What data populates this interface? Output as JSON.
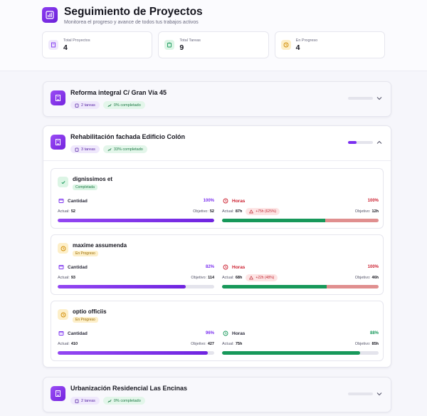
{
  "header": {
    "title": "Seguimiento de Proyectos",
    "subtitle": "Monitorea el progreso y avance de todos tus trabajos activos"
  },
  "stats": [
    {
      "label": "Total Proyectos",
      "value": "4"
    },
    {
      "label": "Total Tareas",
      "value": "9"
    },
    {
      "label": "En Progreso",
      "value": "4"
    }
  ],
  "projects": [
    {
      "name": "Reforma integral C/ Gran Vía 45",
      "tasks_badge": "2 tareas",
      "completion_badge": "0% completado",
      "progress": 0,
      "expanded": false
    },
    {
      "name": "Rehabilitación fachada Edificio Colón",
      "tasks_badge": "3 tareas",
      "completion_badge": "33% completado",
      "progress": 33,
      "expanded": true,
      "tasks": [
        {
          "name": "dignissimos et",
          "status": "Completada",
          "cantidad": {
            "label": "Cantidad",
            "pct": "100%",
            "actual_label": "Actual:",
            "actual": "52",
            "target_label": "Objetivo:",
            "target": "52",
            "fill": 1.0
          },
          "horas": {
            "label": "Horas",
            "pct": "100%",
            "actual_label": "Actual:",
            "actual": "87h",
            "excess": "+75h (625%)",
            "target_label": "Objetivo:",
            "target": "12h",
            "fill": 1.0,
            "over": true
          }
        },
        {
          "name": "maxime assumenda",
          "status": "En Progreso",
          "cantidad": {
            "label": "Cantidad",
            "pct": "82%",
            "actual_label": "Actual:",
            "actual": "93",
            "target_label": "Objetivo:",
            "target": "114",
            "fill": 0.82
          },
          "horas": {
            "label": "Horas",
            "pct": "100%",
            "actual_label": "Actual:",
            "actual": "68h",
            "excess": "+22h (48%)",
            "target_label": "Objetivo:",
            "target": "46h",
            "fill": 1.0,
            "over": true
          }
        },
        {
          "name": "optio officiis",
          "status": "En Progreso",
          "cantidad": {
            "label": "Cantidad",
            "pct": "96%",
            "actual_label": "Actual:",
            "actual": "410",
            "target_label": "Objetivo:",
            "target": "427",
            "fill": 0.96
          },
          "horas": {
            "label": "Horas",
            "pct": "88%",
            "actual_label": "Actual:",
            "actual": "75h",
            "target_label": "Objetivo:",
            "target": "85h",
            "fill": 0.88,
            "over": false
          }
        }
      ]
    },
    {
      "name": "Urbanización Residencial Las Encinas",
      "tasks_badge": "2 tareas",
      "completion_badge": "0% completado",
      "progress": 0,
      "expanded": false
    }
  ],
  "colors": {
    "accent": "#7b2ff0",
    "success": "#17985a",
    "danger": "#cc1f2f",
    "warning": "#f0a81c"
  }
}
